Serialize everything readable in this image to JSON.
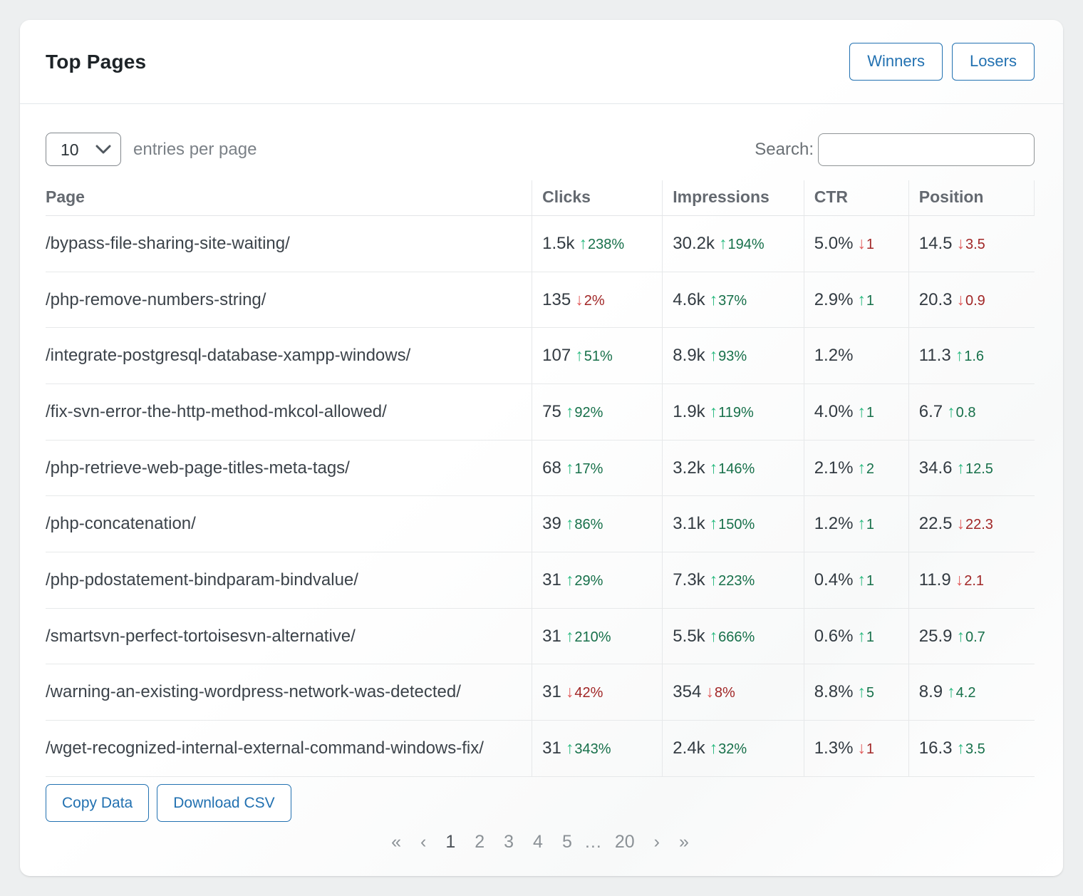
{
  "colors": {
    "page_bg": "#edeff0",
    "accent": "#2271b1",
    "up_arrow": "#2abb80",
    "up_text": "#17704a",
    "down_arrow": "#e25c5c",
    "down_text": "#a12727"
  },
  "card": {
    "title": "Top Pages",
    "header_buttons": [
      {
        "label": "Winners"
      },
      {
        "label": "Losers"
      }
    ],
    "controls": {
      "entries_select_value": "10",
      "entries_label": "entries per page",
      "search_label": "Search:",
      "search_value": ""
    },
    "table": {
      "columns": [
        "Page",
        "Clicks",
        "Impressions",
        "CTR",
        "Position"
      ],
      "rows": [
        {
          "page": "/bypass-file-sharing-site-waiting/",
          "clicks": {
            "value": "1.5k",
            "dir": "up",
            "change": "238%"
          },
          "impressions": {
            "value": "30.2k",
            "dir": "up",
            "change": "194%"
          },
          "ctr": {
            "value": "5.0%",
            "dir": "down",
            "change": "1"
          },
          "position": {
            "value": "14.5",
            "dir": "down",
            "change": "3.5"
          }
        },
        {
          "page": "/php-remove-numbers-string/",
          "clicks": {
            "value": "135",
            "dir": "down",
            "change": "2%"
          },
          "impressions": {
            "value": "4.6k",
            "dir": "up",
            "change": "37%"
          },
          "ctr": {
            "value": "2.9%",
            "dir": "up",
            "change": "1"
          },
          "position": {
            "value": "20.3",
            "dir": "down",
            "change": "0.9"
          }
        },
        {
          "page": "/integrate-postgresql-database-xampp-windows/",
          "clicks": {
            "value": "107",
            "dir": "up",
            "change": "51%"
          },
          "impressions": {
            "value": "8.9k",
            "dir": "up",
            "change": "93%"
          },
          "ctr": {
            "value": "1.2%",
            "dir": null,
            "change": ""
          },
          "position": {
            "value": "11.3",
            "dir": "up",
            "change": "1.6"
          }
        },
        {
          "page": "/fix-svn-error-the-http-method-mkcol-allowed/",
          "clicks": {
            "value": "75",
            "dir": "up",
            "change": "92%"
          },
          "impressions": {
            "value": "1.9k",
            "dir": "up",
            "change": "119%"
          },
          "ctr": {
            "value": "4.0%",
            "dir": "up",
            "change": "1"
          },
          "position": {
            "value": "6.7",
            "dir": "up",
            "change": "0.8"
          }
        },
        {
          "page": "/php-retrieve-web-page-titles-meta-tags/",
          "clicks": {
            "value": "68",
            "dir": "up",
            "change": "17%"
          },
          "impressions": {
            "value": "3.2k",
            "dir": "up",
            "change": "146%"
          },
          "ctr": {
            "value": "2.1%",
            "dir": "up",
            "change": "2"
          },
          "position": {
            "value": "34.6",
            "dir": "up",
            "change": "12.5"
          }
        },
        {
          "page": "/php-concatenation/",
          "clicks": {
            "value": "39",
            "dir": "up",
            "change": "86%"
          },
          "impressions": {
            "value": "3.1k",
            "dir": "up",
            "change": "150%"
          },
          "ctr": {
            "value": "1.2%",
            "dir": "up",
            "change": "1"
          },
          "position": {
            "value": "22.5",
            "dir": "down",
            "change": "22.3"
          }
        },
        {
          "page": "/php-pdostatement-bindparam-bindvalue/",
          "clicks": {
            "value": "31",
            "dir": "up",
            "change": "29%"
          },
          "impressions": {
            "value": "7.3k",
            "dir": "up",
            "change": "223%"
          },
          "ctr": {
            "value": "0.4%",
            "dir": "up",
            "change": "1"
          },
          "position": {
            "value": "11.9",
            "dir": "down",
            "change": "2.1"
          }
        },
        {
          "page": "/smartsvn-perfect-tortoisesvn-alternative/",
          "clicks": {
            "value": "31",
            "dir": "up",
            "change": "210%"
          },
          "impressions": {
            "value": "5.5k",
            "dir": "up",
            "change": "666%"
          },
          "ctr": {
            "value": "0.6%",
            "dir": "up",
            "change": "1"
          },
          "position": {
            "value": "25.9",
            "dir": "up",
            "change": "0.7"
          }
        },
        {
          "page": "/warning-an-existing-wordpress-network-was-detected/",
          "clicks": {
            "value": "31",
            "dir": "down",
            "change": "42%"
          },
          "impressions": {
            "value": "354",
            "dir": "down",
            "change": "8%"
          },
          "ctr": {
            "value": "8.8%",
            "dir": "up",
            "change": "5"
          },
          "position": {
            "value": "8.9",
            "dir": "up",
            "change": "4.2"
          }
        },
        {
          "page": "/wget-recognized-internal-external-command-windows-fix/",
          "clicks": {
            "value": "31",
            "dir": "up",
            "change": "343%"
          },
          "impressions": {
            "value": "2.4k",
            "dir": "up",
            "change": "32%"
          },
          "ctr": {
            "value": "1.3%",
            "dir": "down",
            "change": "1"
          },
          "position": {
            "value": "16.3",
            "dir": "up",
            "change": "3.5"
          }
        }
      ]
    },
    "footer": {
      "copy_button": "Copy Data",
      "download_button": "Download CSV",
      "pagination": [
        {
          "label": "«",
          "current": false
        },
        {
          "label": "‹",
          "current": false
        },
        {
          "label": "1",
          "current": true
        },
        {
          "label": "2",
          "current": false
        },
        {
          "label": "3",
          "current": false
        },
        {
          "label": "4",
          "current": false
        },
        {
          "label": "5",
          "current": false
        },
        {
          "label": "…",
          "current": false,
          "ellipsis": true
        },
        {
          "label": "20",
          "current": false
        },
        {
          "label": "›",
          "current": false
        },
        {
          "label": "»",
          "current": false
        }
      ]
    }
  }
}
